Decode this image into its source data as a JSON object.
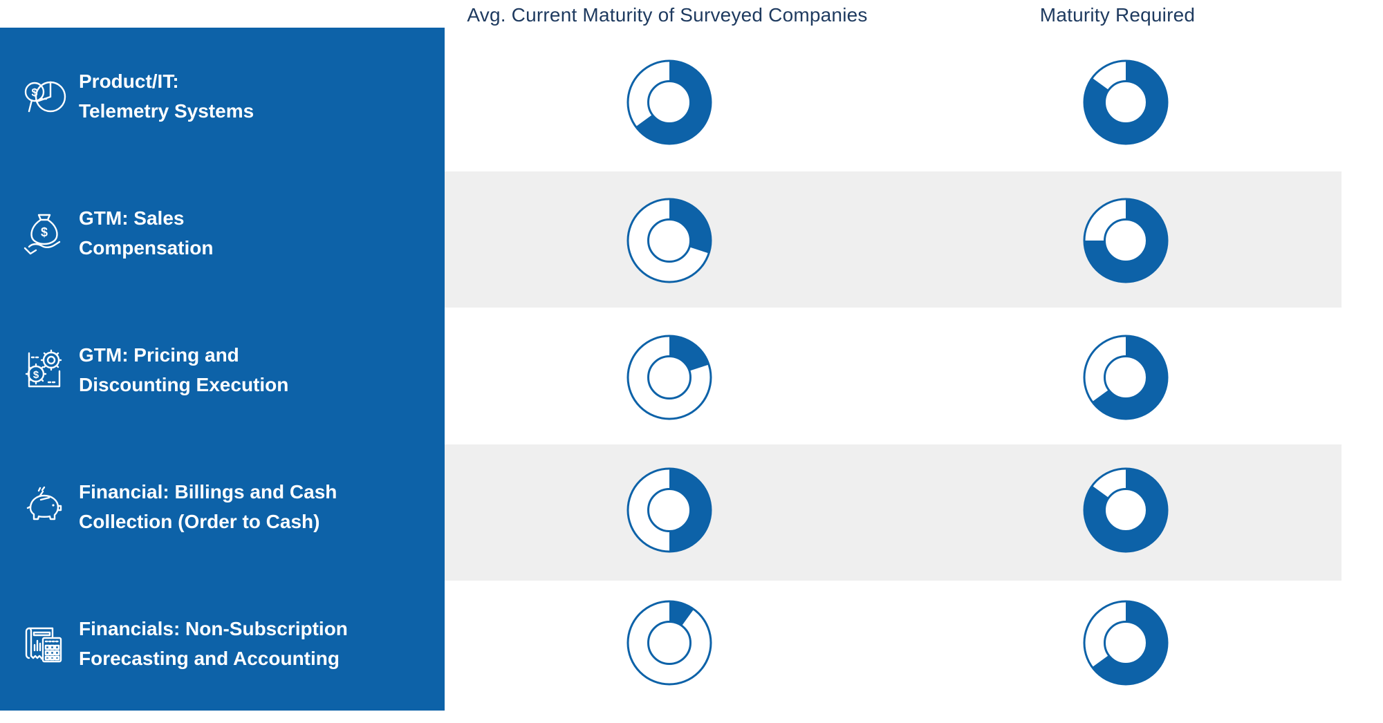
{
  "header": {
    "col1": "Avg. Current Maturity of Surveyed Companies",
    "col2": "Maturity Required"
  },
  "sidebar": {
    "background_color": "#0d62a8",
    "items": [
      {
        "icon": "magnifier-pie-chart-icon",
        "line1": "Product/IT:",
        "line2": "Telemetry Systems"
      },
      {
        "icon": "money-bag-in-hand-icon",
        "line1": "GTM: Sales",
        "line2": "Compensation"
      },
      {
        "icon": "document-gears-icon",
        "line1": "GTM: Pricing and",
        "line2": "Discounting Execution"
      },
      {
        "icon": "piggy-bank-icon",
        "line1": "Financial: Billings and Cash",
        "line2": "Collection (Order to Cash)"
      },
      {
        "icon": "receipt-calculator-icon",
        "line1": "Financials: Non-Subscription",
        "line2": "Forecasting and Accounting"
      }
    ]
  },
  "chart_data": {
    "type": "donut-matrix",
    "description": "Each cell is a single-value donut gauge filled clockwise from 12 o'clock; value = percent of ring filled.",
    "columns": [
      "Avg. Current Maturity of Surveyed Companies",
      "Maturity Required"
    ],
    "categories": [
      "Product/IT: Telemetry Systems",
      "GTM: Sales Compensation",
      "GTM: Pricing and Discounting Execution",
      "Financial: Billings and Cash Collection (Order to Cash)",
      "Financials: Non-Subscription Forecasting and Accounting"
    ],
    "series": [
      {
        "name": "Avg. Current Maturity of Surveyed Companies",
        "values": [
          65,
          30,
          20,
          50,
          10
        ]
      },
      {
        "name": "Maturity Required",
        "values": [
          85,
          75,
          65,
          85,
          65
        ]
      }
    ],
    "value_unit": "percent_filled",
    "value_range": [
      0,
      100
    ],
    "donut_color": "#0d62a8",
    "donut_empty_color": "#ffffff",
    "row_stripe_color": "#efefef",
    "header_text_color": "#1e3a5f"
  }
}
